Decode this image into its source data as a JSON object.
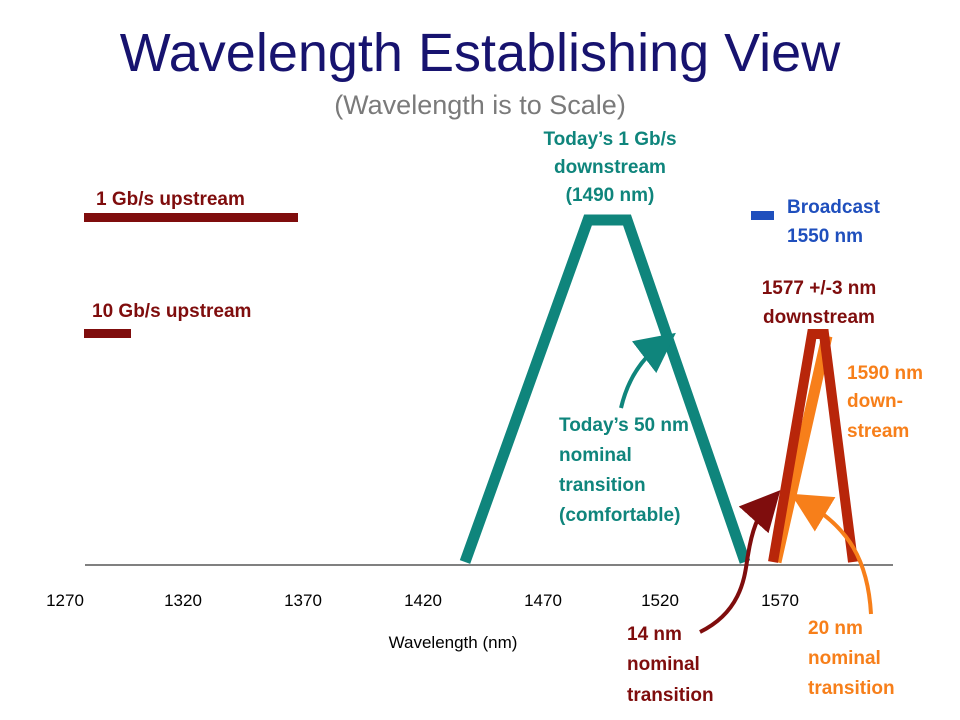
{
  "title": "Wavelength Establishing View",
  "subtitle": "(Wavelength is to Scale)",
  "x_axis": {
    "label": "Wavelength (nm)",
    "ticks": [
      "1270",
      "1320",
      "1370",
      "1420",
      "1470",
      "1520",
      "1570"
    ]
  },
  "labels": {
    "up_1g": "1 Gb/s upstream",
    "up_10g": "10 Gb/s upstream",
    "down_1g": [
      "Today’s 1 Gb/s",
      "downstream",
      "(1490 nm)"
    ],
    "broadcast": [
      "Broadcast",
      "1550 nm"
    ],
    "down_1577": [
      "1577 +/-3 nm",
      "downstream"
    ],
    "down_1590": [
      "1590 nm",
      "down-",
      "stream"
    ],
    "transition_50": [
      "Today’s 50 nm",
      "nominal",
      "transition",
      "(comfortable)"
    ],
    "transition_14": [
      "14 nm",
      "nominal",
      "transition"
    ],
    "transition_20": [
      "20 nm",
      "nominal",
      "transition"
    ]
  },
  "colors": {
    "title": "#17136f",
    "subtitle": "#7a7a7a",
    "upstream": "#7f0d0d",
    "downstream_1g": "#0f857c",
    "broadcast": "#1f4fbd",
    "down_1577": "#b8260a",
    "down_1590": "#f77f1a",
    "arrow_14": "#7f0d0d",
    "arrow_20": "#f77f1a"
  }
}
